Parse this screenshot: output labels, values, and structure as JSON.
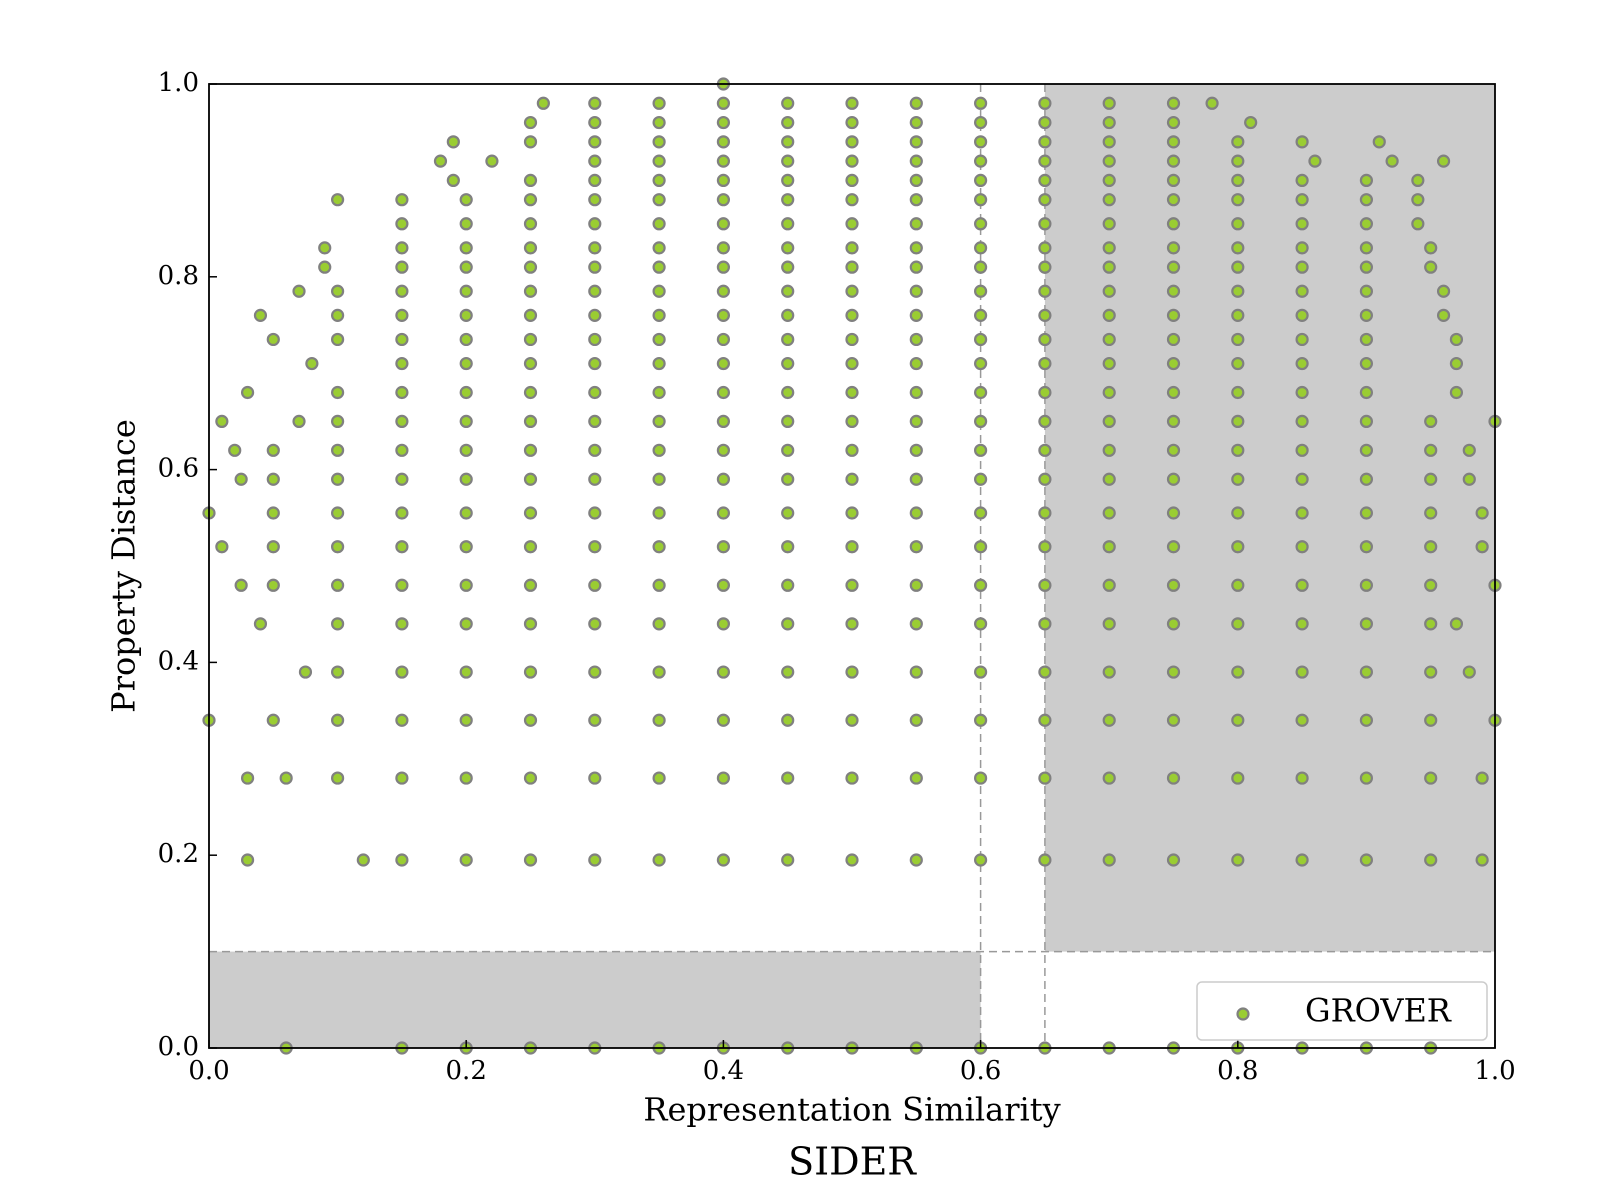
{
  "chart_data": {
    "type": "scatter",
    "title": "SIDER",
    "xlabel": "Representation Similarity",
    "ylabel": "Property Distance",
    "xlim": [
      0,
      1
    ],
    "ylim": [
      0,
      1
    ],
    "xticks": [
      {
        "value": 0,
        "label": "0.0"
      },
      0.2,
      0.4,
      0.6,
      0.8,
      {
        "value": 1,
        "label": "1.0"
      }
    ],
    "yticks": [
      {
        "value": 0,
        "label": "0.0"
      },
      0.2,
      0.4,
      0.6,
      0.8,
      {
        "value": 1,
        "label": "1.0"
      }
    ],
    "legend": "lower right",
    "regions": [
      {
        "xlim": [
          0.65,
          1
        ],
        "ylim": [
          0.1,
          1
        ],
        "color": "#cccccc"
      },
      {
        "xlim": [
          0,
          0.6
        ],
        "ylim": [
          0,
          0.1
        ],
        "color": "#cccccc"
      }
    ],
    "thresholds": {
      "x": [
        0.6,
        0.65
      ],
      "y": [
        0.1
      ]
    },
    "series": [
      {
        "name": "GROVER",
        "color": "#9acd32",
        "edgecolor": "#808080",
        "rows": [
          {
            "y": 1.0,
            "x": [
              0.4
            ]
          },
          {
            "y": 0.98,
            "x": [
              0.26,
              0.3,
              0.35,
              0.4,
              0.45,
              0.5,
              0.55,
              0.6,
              0.65,
              0.7,
              0.75,
              0.78
            ]
          },
          {
            "y": 0.96,
            "x": [
              0.25,
              0.3,
              0.35,
              0.4,
              0.45,
              0.5,
              0.55,
              0.6,
              0.65,
              0.7,
              0.75,
              0.81
            ]
          },
          {
            "y": 0.94,
            "x": [
              0.19,
              0.25,
              0.3,
              0.35,
              0.4,
              0.45,
              0.5,
              0.55,
              0.6,
              0.65,
              0.7,
              0.75,
              0.8,
              0.85,
              0.91
            ]
          },
          {
            "y": 0.92,
            "x": [
              0.18,
              0.22,
              0.3,
              0.35,
              0.4,
              0.45,
              0.5,
              0.55,
              0.6,
              0.65,
              0.7,
              0.75,
              0.8,
              0.86,
              0.92,
              0.96
            ]
          },
          {
            "y": 0.9,
            "x": [
              0.19,
              0.25,
              0.3,
              0.35,
              0.4,
              0.45,
              0.5,
              0.55,
              0.6,
              0.65,
              0.7,
              0.75,
              0.8,
              0.85,
              0.9,
              0.94
            ]
          },
          {
            "y": 0.88,
            "x": [
              0.1,
              0.15,
              0.2,
              0.25,
              0.3,
              0.35,
              0.4,
              0.45,
              0.5,
              0.55,
              0.6,
              0.65,
              0.7,
              0.75,
              0.8,
              0.85,
              0.9,
              0.94
            ]
          },
          {
            "y": 0.855,
            "x": [
              0.15,
              0.2,
              0.25,
              0.3,
              0.35,
              0.4,
              0.45,
              0.5,
              0.55,
              0.6,
              0.65,
              0.7,
              0.75,
              0.8,
              0.85,
              0.9,
              0.94
            ]
          },
          {
            "y": 0.83,
            "x": [
              0.09,
              0.15,
              0.2,
              0.25,
              0.3,
              0.35,
              0.4,
              0.45,
              0.5,
              0.55,
              0.6,
              0.65,
              0.7,
              0.75,
              0.8,
              0.85,
              0.9,
              0.95
            ]
          },
          {
            "y": 0.81,
            "x": [
              0.09,
              0.15,
              0.2,
              0.25,
              0.3,
              0.35,
              0.4,
              0.45,
              0.5,
              0.55,
              0.6,
              0.65,
              0.7,
              0.75,
              0.8,
              0.85,
              0.9,
              0.95
            ]
          },
          {
            "y": 0.785,
            "x": [
              0.07,
              0.1,
              0.15,
              0.2,
              0.25,
              0.3,
              0.35,
              0.4,
              0.45,
              0.5,
              0.55,
              0.6,
              0.65,
              0.7,
              0.75,
              0.8,
              0.85,
              0.9,
              0.96
            ]
          },
          {
            "y": 0.76,
            "x": [
              0.04,
              0.1,
              0.15,
              0.2,
              0.25,
              0.3,
              0.35,
              0.4,
              0.45,
              0.5,
              0.55,
              0.6,
              0.65,
              0.7,
              0.75,
              0.8,
              0.85,
              0.9,
              0.96
            ]
          },
          {
            "y": 0.735,
            "x": [
              0.05,
              0.1,
              0.15,
              0.2,
              0.25,
              0.3,
              0.35,
              0.4,
              0.45,
              0.5,
              0.55,
              0.6,
              0.65,
              0.7,
              0.75,
              0.8,
              0.85,
              0.9,
              0.97
            ]
          },
          {
            "y": 0.71,
            "x": [
              0.08,
              0.15,
              0.2,
              0.25,
              0.3,
              0.35,
              0.4,
              0.45,
              0.5,
              0.55,
              0.6,
              0.65,
              0.7,
              0.75,
              0.8,
              0.85,
              0.9,
              0.97
            ]
          },
          {
            "y": 0.68,
            "x": [
              0.03,
              0.1,
              0.15,
              0.2,
              0.25,
              0.3,
              0.35,
              0.4,
              0.45,
              0.5,
              0.55,
              0.6,
              0.65,
              0.7,
              0.75,
              0.8,
              0.85,
              0.9,
              0.97
            ]
          },
          {
            "y": 0.65,
            "x": [
              0.01,
              0.07,
              0.1,
              0.15,
              0.2,
              0.25,
              0.3,
              0.35,
              0.4,
              0.45,
              0.5,
              0.55,
              0.6,
              0.65,
              0.7,
              0.75,
              0.8,
              0.85,
              0.9,
              0.95,
              1.0
            ]
          },
          {
            "y": 0.62,
            "x": [
              0.02,
              0.05,
              0.1,
              0.15,
              0.2,
              0.25,
              0.3,
              0.35,
              0.4,
              0.45,
              0.5,
              0.55,
              0.6,
              0.65,
              0.7,
              0.75,
              0.8,
              0.85,
              0.9,
              0.95,
              0.98
            ]
          },
          {
            "y": 0.59,
            "x": [
              0.025,
              0.05,
              0.1,
              0.15,
              0.2,
              0.25,
              0.3,
              0.35,
              0.4,
              0.45,
              0.5,
              0.55,
              0.6,
              0.65,
              0.7,
              0.75,
              0.8,
              0.85,
              0.9,
              0.95,
              0.98
            ]
          },
          {
            "y": 0.555,
            "x": [
              0.0,
              0.05,
              0.1,
              0.15,
              0.2,
              0.25,
              0.3,
              0.35,
              0.4,
              0.45,
              0.5,
              0.55,
              0.6,
              0.65,
              0.7,
              0.75,
              0.8,
              0.85,
              0.9,
              0.95,
              0.99
            ]
          },
          {
            "y": 0.52,
            "x": [
              0.01,
              0.05,
              0.1,
              0.15,
              0.2,
              0.25,
              0.3,
              0.35,
              0.4,
              0.45,
              0.5,
              0.55,
              0.6,
              0.65,
              0.7,
              0.75,
              0.8,
              0.85,
              0.9,
              0.95,
              0.99
            ]
          },
          {
            "y": 0.48,
            "x": [
              0.025,
              0.05,
              0.1,
              0.15,
              0.2,
              0.25,
              0.3,
              0.35,
              0.4,
              0.45,
              0.5,
              0.55,
              0.6,
              0.65,
              0.7,
              0.75,
              0.8,
              0.85,
              0.9,
              0.95,
              1.0
            ]
          },
          {
            "y": 0.44,
            "x": [
              0.04,
              0.1,
              0.15,
              0.2,
              0.25,
              0.3,
              0.35,
              0.4,
              0.45,
              0.5,
              0.55,
              0.6,
              0.65,
              0.7,
              0.75,
              0.8,
              0.85,
              0.9,
              0.95,
              0.97
            ]
          },
          {
            "y": 0.39,
            "x": [
              0.075,
              0.1,
              0.15,
              0.2,
              0.25,
              0.3,
              0.35,
              0.4,
              0.45,
              0.5,
              0.55,
              0.6,
              0.65,
              0.7,
              0.75,
              0.8,
              0.85,
              0.9,
              0.95,
              0.98
            ]
          },
          {
            "y": 0.34,
            "x": [
              0.0,
              0.05,
              0.1,
              0.15,
              0.2,
              0.25,
              0.3,
              0.35,
              0.4,
              0.45,
              0.5,
              0.55,
              0.6,
              0.65,
              0.7,
              0.75,
              0.8,
              0.85,
              0.9,
              0.95,
              1.0
            ]
          },
          {
            "y": 0.28,
            "x": [
              0.03,
              0.06,
              0.1,
              0.15,
              0.2,
              0.25,
              0.3,
              0.35,
              0.4,
              0.45,
              0.5,
              0.55,
              0.6,
              0.65,
              0.7,
              0.75,
              0.8,
              0.85,
              0.9,
              0.95,
              0.99
            ]
          },
          {
            "y": 0.195,
            "x": [
              0.03,
              0.12,
              0.15,
              0.2,
              0.25,
              0.3,
              0.35,
              0.4,
              0.45,
              0.5,
              0.55,
              0.6,
              0.65,
              0.7,
              0.75,
              0.8,
              0.85,
              0.9,
              0.95,
              0.99
            ]
          },
          {
            "y": 0.0,
            "x": [
              0.06,
              0.15,
              0.2,
              0.25,
              0.3,
              0.35,
              0.4,
              0.45,
              0.5,
              0.55,
              0.6,
              0.65,
              0.7,
              0.75,
              0.8,
              0.85,
              0.9,
              0.95
            ]
          }
        ]
      }
    ]
  }
}
